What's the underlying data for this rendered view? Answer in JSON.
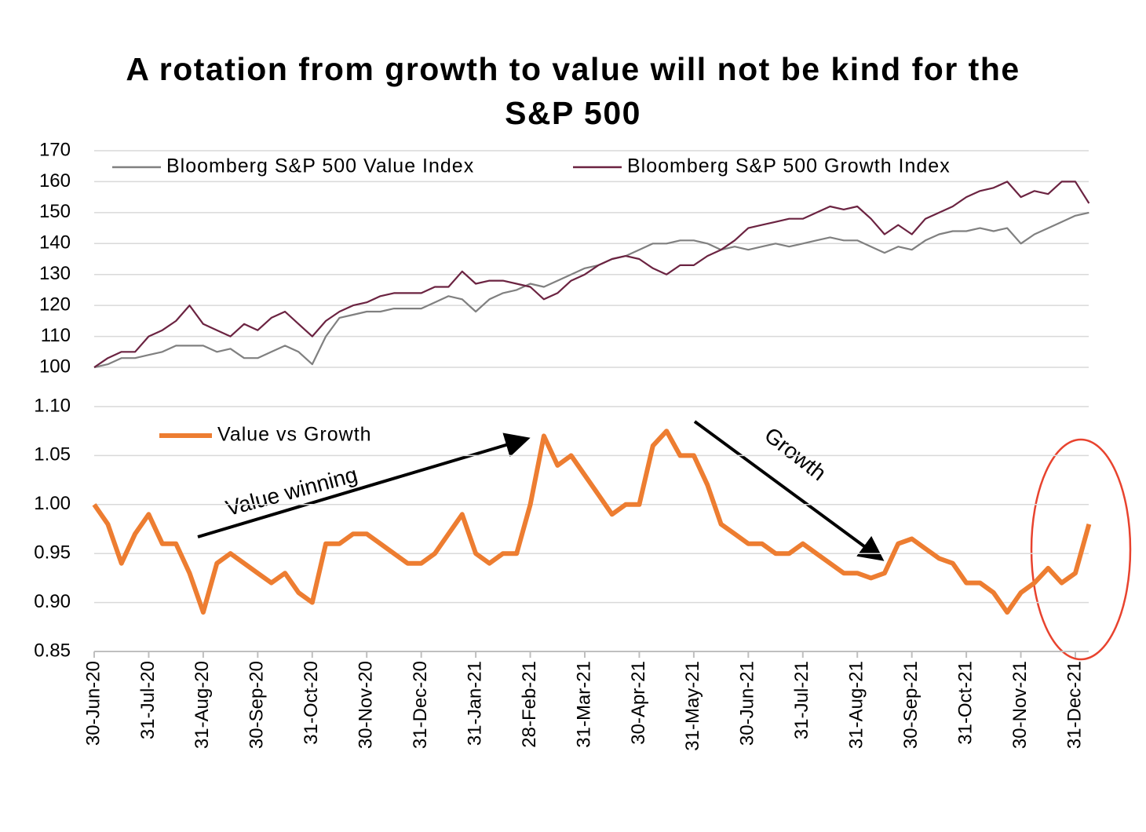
{
  "chart_data": [
    {
      "type": "line",
      "title": "A rotation from growth to value will not be kind for the S&P 500",
      "ylim": [
        100,
        170
      ],
      "yticks": [
        100,
        110,
        120,
        130,
        140,
        150,
        160,
        170
      ],
      "grid": true,
      "series": [
        {
          "name": "Bloomberg S&P 500 Value Index",
          "color": "#808080",
          "values": [
            100,
            101,
            103,
            103,
            104,
            105,
            107,
            107,
            107,
            105,
            106,
            103,
            103,
            105,
            107,
            105,
            101,
            110,
            116,
            117,
            118,
            118,
            119,
            119,
            119,
            121,
            123,
            122,
            118,
            122,
            124,
            125,
            127,
            126,
            128,
            130,
            132,
            133,
            135,
            136,
            138,
            140,
            140,
            141,
            141,
            140,
            138,
            139,
            138,
            139,
            140,
            139,
            140,
            141,
            142,
            141,
            141,
            139,
            137,
            139,
            138,
            141,
            143,
            144,
            144,
            145,
            144,
            145,
            140,
            143,
            145,
            147,
            149,
            150
          ]
        },
        {
          "name": "Bloomberg S&P 500 Growth Index",
          "color": "#6b2341",
          "values": [
            100,
            103,
            105,
            105,
            110,
            112,
            115,
            120,
            114,
            112,
            110,
            114,
            112,
            116,
            118,
            114,
            110,
            115,
            118,
            120,
            121,
            123,
            124,
            124,
            124,
            126,
            126,
            131,
            127,
            128,
            128,
            127,
            126,
            122,
            124,
            128,
            130,
            133,
            135,
            136,
            135,
            132,
            130,
            133,
            133,
            136,
            138,
            141,
            145,
            146,
            147,
            148,
            148,
            150,
            152,
            151,
            152,
            148,
            143,
            146,
            143,
            148,
            150,
            152,
            155,
            157,
            158,
            160,
            155,
            157,
            156,
            160,
            160,
            153
          ]
        }
      ]
    },
    {
      "type": "line",
      "ylim": [
        0.85,
        1.1
      ],
      "yticks": [
        0.85,
        {
          "value": 0.9,
          "label": "0.90"
        },
        0.95,
        {
          "value": 1.0,
          "label": "1.00"
        },
        1.05,
        {
          "value": 1.1,
          "label": "1.10"
        }
      ],
      "grid": true,
      "categories": [
        "30-Jun-20",
        null,
        null,
        null,
        "31-Jul-20",
        null,
        null,
        null,
        "31-Aug-20",
        null,
        null,
        null,
        "30-Sep-20",
        null,
        null,
        null,
        "31-Oct-20",
        null,
        null,
        null,
        "30-Nov-20",
        null,
        null,
        null,
        "31-Dec-20",
        null,
        null,
        null,
        "31-Jan-21",
        null,
        null,
        null,
        "28-Feb-21",
        null,
        null,
        null,
        "31-Mar-21",
        null,
        null,
        null,
        "30-Apr-21",
        null,
        null,
        null,
        "31-May-21",
        null,
        null,
        null,
        "30-Jun-21",
        null,
        null,
        null,
        "31-Jul-21",
        null,
        null,
        null,
        "31-Aug-21",
        null,
        null,
        null,
        "30-Sep-21",
        null,
        null,
        null,
        "31-Oct-21",
        null,
        null,
        null,
        "30-Nov-21",
        null,
        null,
        null,
        "31-Dec-21",
        null
      ],
      "series": [
        {
          "name": "Value vs Growth",
          "color": "#ed7d31",
          "values": [
            1.0,
            0.98,
            0.94,
            0.97,
            0.99,
            0.96,
            0.96,
            0.93,
            0.89,
            0.94,
            0.95,
            0.94,
            0.93,
            0.92,
            0.93,
            0.91,
            0.9,
            0.96,
            0.96,
            0.97,
            0.97,
            0.96,
            0.95,
            0.94,
            0.94,
            0.95,
            0.97,
            0.99,
            0.95,
            0.94,
            0.95,
            0.95,
            1.0,
            1.07,
            1.04,
            1.05,
            1.03,
            1.01,
            0.99,
            1.0,
            1.0,
            1.06,
            1.075,
            1.05,
            1.05,
            1.02,
            0.98,
            0.97,
            0.96,
            0.96,
            0.95,
            0.95,
            0.96,
            0.95,
            0.94,
            0.93,
            0.93,
            0.925,
            0.93,
            0.96,
            0.965,
            0.955,
            0.945,
            0.94,
            0.92,
            0.92,
            0.91,
            0.89,
            0.91,
            0.92,
            0.935,
            0.92,
            0.93,
            0.98
          ]
        }
      ],
      "annotations": [
        "Value winning",
        "Growth"
      ]
    }
  ]
}
